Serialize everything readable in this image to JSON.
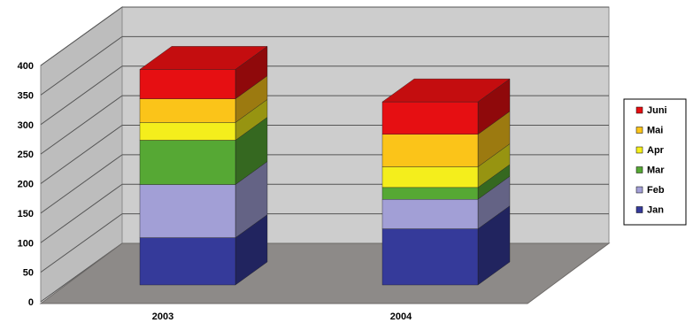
{
  "chart_data": {
    "type": "bar",
    "stacked": true,
    "three_d": true,
    "categories": [
      "2003",
      "2004"
    ],
    "series": [
      {
        "name": "Jan",
        "color": "#353a9a",
        "values": [
          80,
          95
        ]
      },
      {
        "name": "Feb",
        "color": "#a29fd6",
        "values": [
          90,
          50
        ]
      },
      {
        "name": "Mar",
        "color": "#56a834",
        "values": [
          75,
          20
        ]
      },
      {
        "name": "Apr",
        "color": "#f4ee1c",
        "values": [
          30,
          35
        ]
      },
      {
        "name": "Mai",
        "color": "#fbc419",
        "values": [
          40,
          55
        ]
      },
      {
        "name": "Juni",
        "color": "#e60f12",
        "values": [
          50,
          55
        ]
      }
    ],
    "ylim": [
      0,
      400
    ],
    "yticks": [
      "0",
      "50",
      "100",
      "150",
      "200",
      "250",
      "300",
      "350",
      "400"
    ],
    "grid": true,
    "legend": "right",
    "wall_color": "#cdcdcd",
    "floor_color": "#8d8a88"
  }
}
